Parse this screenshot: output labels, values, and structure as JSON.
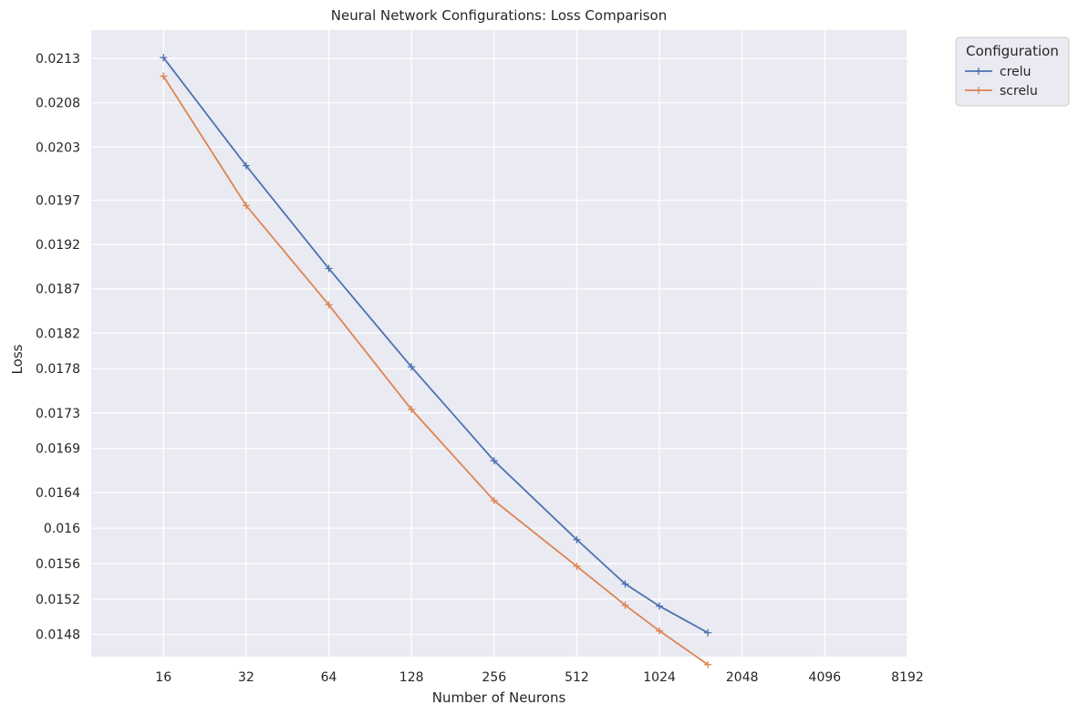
{
  "chart_data": {
    "type": "line",
    "title": "Neural Network Configurations: Loss Comparison",
    "xlabel": "Number of Neurons",
    "ylabel": "Loss",
    "xscale": "log2",
    "xlim": [
      8.73,
      8192
    ],
    "ylim": [
      0.01455,
      0.02162
    ],
    "xticks": [
      16,
      32,
      64,
      128,
      256,
      512,
      1024,
      2048,
      4096,
      8192
    ],
    "xtick_labels": [
      "16",
      "32",
      "64",
      "128",
      "256",
      "512",
      "1024",
      "2048",
      "4096",
      "8192"
    ],
    "yticks": [
      0.0148,
      0.0152,
      0.0156,
      0.016,
      0.0164,
      0.0169,
      0.0173,
      0.0178,
      0.0182,
      0.0187,
      0.0192,
      0.0197,
      0.0203,
      0.0208,
      0.0213
    ],
    "ytick_labels": [
      "0.0148",
      "0.0152",
      "0.0156",
      "0.016",
      "0.0164",
      "0.0169",
      "0.0173",
      "0.0178",
      "0.0182",
      "0.0187",
      "0.0192",
      "0.0197",
      "0.0203",
      "0.0208",
      "0.0213"
    ],
    "grid": true,
    "legend": {
      "title": "Configuration",
      "placement": "outside-top-right"
    },
    "series": [
      {
        "name": "crelu",
        "color": "#4c72b0",
        "x": [
          16,
          32,
          64,
          128,
          256,
          512,
          768,
          1024,
          1536
        ],
        "y": [
          0.02131,
          0.02009,
          0.01893,
          0.01782,
          0.01676,
          0.01587,
          0.01537,
          0.01512,
          0.01482
        ]
      },
      {
        "name": "screlu",
        "color": "#dd8452",
        "x": [
          16,
          32,
          64,
          128,
          256,
          512,
          768,
          1024,
          1536
        ],
        "y": [
          0.0211,
          0.01964,
          0.01852,
          0.01734,
          0.01631,
          0.01557,
          0.01513,
          0.01484,
          0.01446
        ]
      }
    ]
  }
}
